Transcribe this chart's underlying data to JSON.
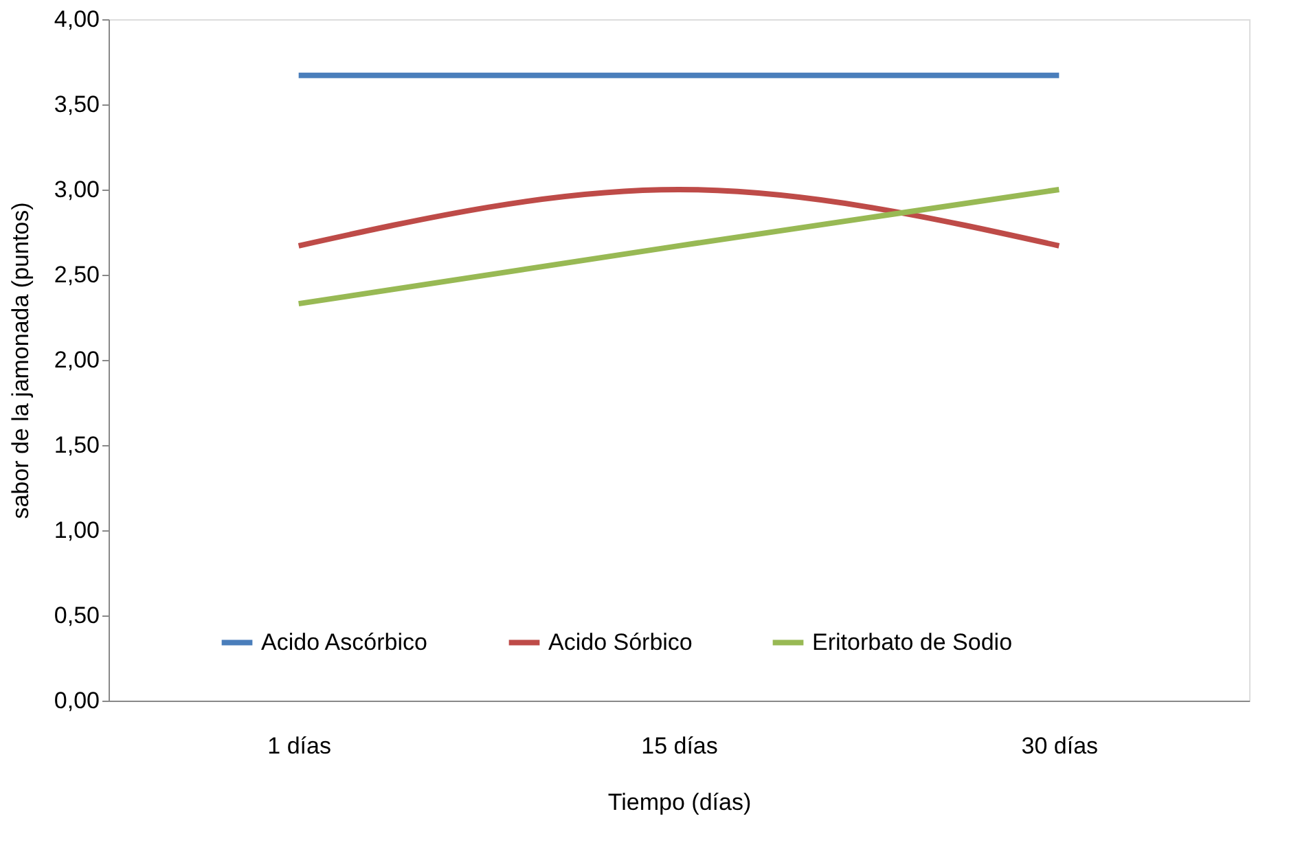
{
  "chart_data": {
    "type": "line",
    "xlabel": "Tiempo (días)",
    "ylabel": "sabor de la jamonada (puntos)",
    "categories": [
      "1 días",
      "15 días",
      "30 días"
    ],
    "series": [
      {
        "name": "Acido Ascórbico",
        "color": "#4a7ebb",
        "values": [
          3.67,
          3.67,
          3.67
        ]
      },
      {
        "name": "Acido Sórbico",
        "color": "#be4b48",
        "values": [
          2.67,
          3.0,
          2.67
        ]
      },
      {
        "name": "Eritorbato de Sodio",
        "color": "#98b954",
        "values": [
          2.33,
          2.67,
          3.0
        ]
      }
    ],
    "ylim": [
      0,
      4
    ],
    "yticks": [
      {
        "value": 0,
        "label": "0,00"
      },
      {
        "value": 0.5,
        "label": "0,50"
      },
      {
        "value": 1,
        "label": "1,00"
      },
      {
        "value": 1.5,
        "label": "1,50"
      },
      {
        "value": 2,
        "label": "2,00"
      },
      {
        "value": 2.5,
        "label": "2,50"
      },
      {
        "value": 3,
        "label": "3,00"
      },
      {
        "value": 3.5,
        "label": "3,50"
      },
      {
        "value": 4,
        "label": "4,00"
      }
    ],
    "grid": false,
    "legend": "bottom",
    "marker": "none",
    "line_style": "solid"
  }
}
